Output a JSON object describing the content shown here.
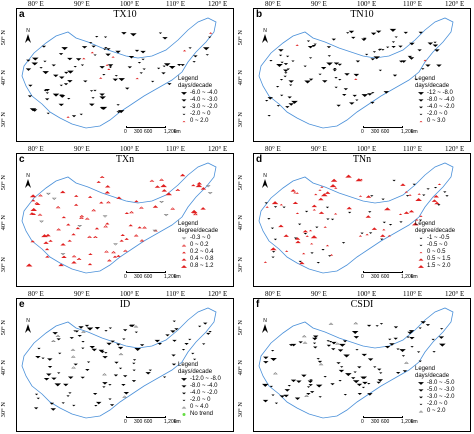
{
  "ticks_top": [
    "80° E",
    "90° E",
    "100° E",
    "110° E",
    "120° E"
  ],
  "ticks_left": [
    "50° N",
    "40° N",
    "30° N"
  ],
  "panels": [
    {
      "key": "a",
      "title": "TX10",
      "legend_title": "Legend",
      "legend_unit": "days/decade",
      "legend_items": [
        {
          "label": "-6.0 ~ -4.0",
          "color": "#000000",
          "shape": "tri-down",
          "size": 6
        },
        {
          "label": "-4.0 ~ -3.0",
          "color": "#000000",
          "shape": "tri-down",
          "size": 5
        },
        {
          "label": "-3.0 ~ -2.0",
          "color": "#000000",
          "shape": "tri-down",
          "size": 4
        },
        {
          "label": "-2.0 ~ 0",
          "color": "#000000",
          "shape": "tri-down",
          "size": 3
        },
        {
          "label": "0 ~ 2.0",
          "color": "#e02020",
          "shape": "tri-up",
          "size": 3
        }
      ],
      "scale_labels": [
        "0",
        "300",
        "600",
        "1,200"
      ],
      "scale_unit": "km"
    },
    {
      "key": "b",
      "title": "TN10",
      "legend_title": "Legend",
      "legend_unit": "days/decade",
      "legend_items": [
        {
          "label": "-12 ~ -8.0",
          "color": "#000000",
          "shape": "tri-down",
          "size": 6
        },
        {
          "label": "-8.0 ~ -4.0",
          "color": "#000000",
          "shape": "tri-down",
          "size": 5
        },
        {
          "label": "-4.0 ~ -2.0",
          "color": "#000000",
          "shape": "tri-down",
          "size": 4
        },
        {
          "label": "-2.0 ~ 0",
          "color": "#000000",
          "shape": "tri-down",
          "size": 3
        },
        {
          "label": "0 ~ 3.0",
          "color": "#e02020",
          "shape": "tri-up",
          "size": 3
        }
      ],
      "scale_labels": [
        "0",
        "300",
        "600",
        "1,200"
      ],
      "scale_unit": "km"
    },
    {
      "key": "c",
      "title": "TXn",
      "legend_title": "Legend",
      "legend_unit": "degree/decade",
      "legend_items": [
        {
          "label": "-0.3 ~ 0",
          "color": "#808080",
          "shape": "tri-down-open",
          "size": 3
        },
        {
          "label": "0 ~ 0.2",
          "color": "#e02020",
          "shape": "tri-up-open",
          "size": 3
        },
        {
          "label": "0.2 ~ 0.4",
          "color": "#e02020",
          "shape": "tri-up",
          "size": 4
        },
        {
          "label": "0.4 ~ 0.8",
          "color": "#e02020",
          "shape": "tri-up",
          "size": 5
        },
        {
          "label": "0.8 ~ 1.2",
          "color": "#e02020",
          "shape": "tri-up",
          "size": 6
        }
      ],
      "scale_labels": [
        "0",
        "300",
        "600",
        "1,200"
      ],
      "scale_unit": "km"
    },
    {
      "key": "d",
      "title": "TNn",
      "legend_title": "Legend",
      "legend_unit": "degree/decade",
      "legend_items": [
        {
          "label": "-1 ~ -0.5",
          "color": "#000000",
          "shape": "tri-down",
          "size": 3
        },
        {
          "label": "-0.5 ~ 0",
          "color": "#000000",
          "shape": "tri-down",
          "size": 3
        },
        {
          "label": "0 ~ 0.5",
          "color": "#e02020",
          "shape": "tri-up",
          "size": 3
        },
        {
          "label": "0.5 ~ 1.5",
          "color": "#e02020",
          "shape": "tri-up",
          "size": 5
        },
        {
          "label": "1.5 ~ 2.0",
          "color": "#e02020",
          "shape": "tri-up",
          "size": 6
        }
      ],
      "scale_labels": [
        "0",
        "300",
        "600",
        "1,200"
      ],
      "scale_unit": "km"
    },
    {
      "key": "e",
      "title": "ID",
      "legend_title": "Legend",
      "legend_unit": "days/decade",
      "legend_items": [
        {
          "label": "-12.0 ~ -8.0",
          "color": "#000000",
          "shape": "tri-down",
          "size": 6
        },
        {
          "label": "-8.0 ~ -4.0",
          "color": "#000000",
          "shape": "tri-down",
          "size": 5
        },
        {
          "label": "-4.0 ~ -2.0",
          "color": "#000000",
          "shape": "tri-down",
          "size": 4
        },
        {
          "label": "-2.0 ~ 0",
          "color": "#000000",
          "shape": "tri-down",
          "size": 3
        },
        {
          "label": "0 ~ 4.0",
          "color": "#808080",
          "shape": "tri-up-open",
          "size": 3
        },
        {
          "label": "No trend",
          "color": "#66dd44",
          "shape": "circle",
          "size": 3
        }
      ],
      "scale_labels": [
        "0",
        "300",
        "600",
        "1,200"
      ],
      "scale_unit": "km"
    },
    {
      "key": "f",
      "title": "CSDI",
      "legend_title": "Legend",
      "legend_unit": "days/decade",
      "legend_items": [
        {
          "label": "-8.0 ~ -5.0",
          "color": "#000000",
          "shape": "tri-down",
          "size": 6
        },
        {
          "label": "-5.0 ~ -3.0",
          "color": "#000000",
          "shape": "tri-down",
          "size": 5
        },
        {
          "label": "-3.0 ~ -2.0",
          "color": "#000000",
          "shape": "tri-down",
          "size": 4
        },
        {
          "label": "-2.0 ~ 0",
          "color": "#000000",
          "shape": "tri-down",
          "size": 3
        },
        {
          "label": "0 ~ 2.0",
          "color": "#808080",
          "shape": "tri-up-open",
          "size": 3
        }
      ],
      "scale_labels": [
        "0",
        "300",
        "600",
        "1,200"
      ],
      "scale_unit": "km"
    }
  ],
  "north_label": "N",
  "colors": {
    "boundary": "#4a90d9",
    "decrease": "#000000",
    "increase": "#e02020",
    "neutral": "#808080",
    "no_trend": "#66dd44"
  }
}
